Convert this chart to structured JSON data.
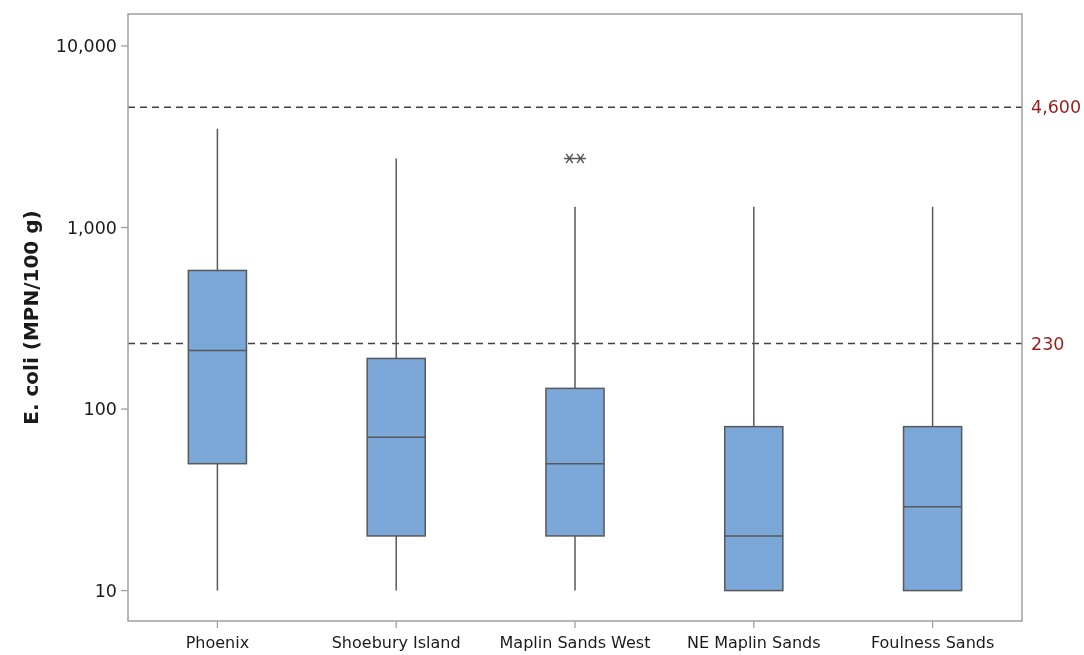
{
  "chart_data": {
    "type": "box",
    "ylabel": "E. coli (MPN/100 g)",
    "categories": [
      "Phoenix",
      "Shoebury Island",
      "Maplin Sands West",
      "NE Maplin Sands",
      "Foulness Sands"
    ],
    "color": "#7ba7d9",
    "boxes": [
      {
        "low": 10,
        "q1": 50,
        "median": 210,
        "q3": 580,
        "high": 3500
      },
      {
        "low": 10,
        "q1": 20,
        "median": 70,
        "q3": 190,
        "high": 2400
      },
      {
        "low": 10,
        "q1": 20,
        "median": 50,
        "q3": 130,
        "high": 1300,
        "outliers": [
          2400,
          2400
        ]
      },
      {
        "low": 10,
        "q1": 10,
        "median": 20,
        "q3": 80,
        "high": 1300
      },
      {
        "low": 10,
        "q1": 10,
        "median": 29,
        "q3": 80,
        "high": 1300
      }
    ],
    "log": true,
    "ylim": [
      6.8,
      15000
    ],
    "yticks": [
      10,
      100,
      {
        "value": 1000,
        "label": "1,000"
      },
      {
        "value": 10000,
        "label": "10,000"
      }
    ],
    "ref_lines": [
      {
        "axis": "y",
        "value": 4600,
        "label": "4,600",
        "color": "#404040",
        "line_style": "dashed"
      },
      {
        "axis": "y",
        "value": 230,
        "label": "230",
        "color": "#404040",
        "line_style": "dashed"
      }
    ]
  }
}
